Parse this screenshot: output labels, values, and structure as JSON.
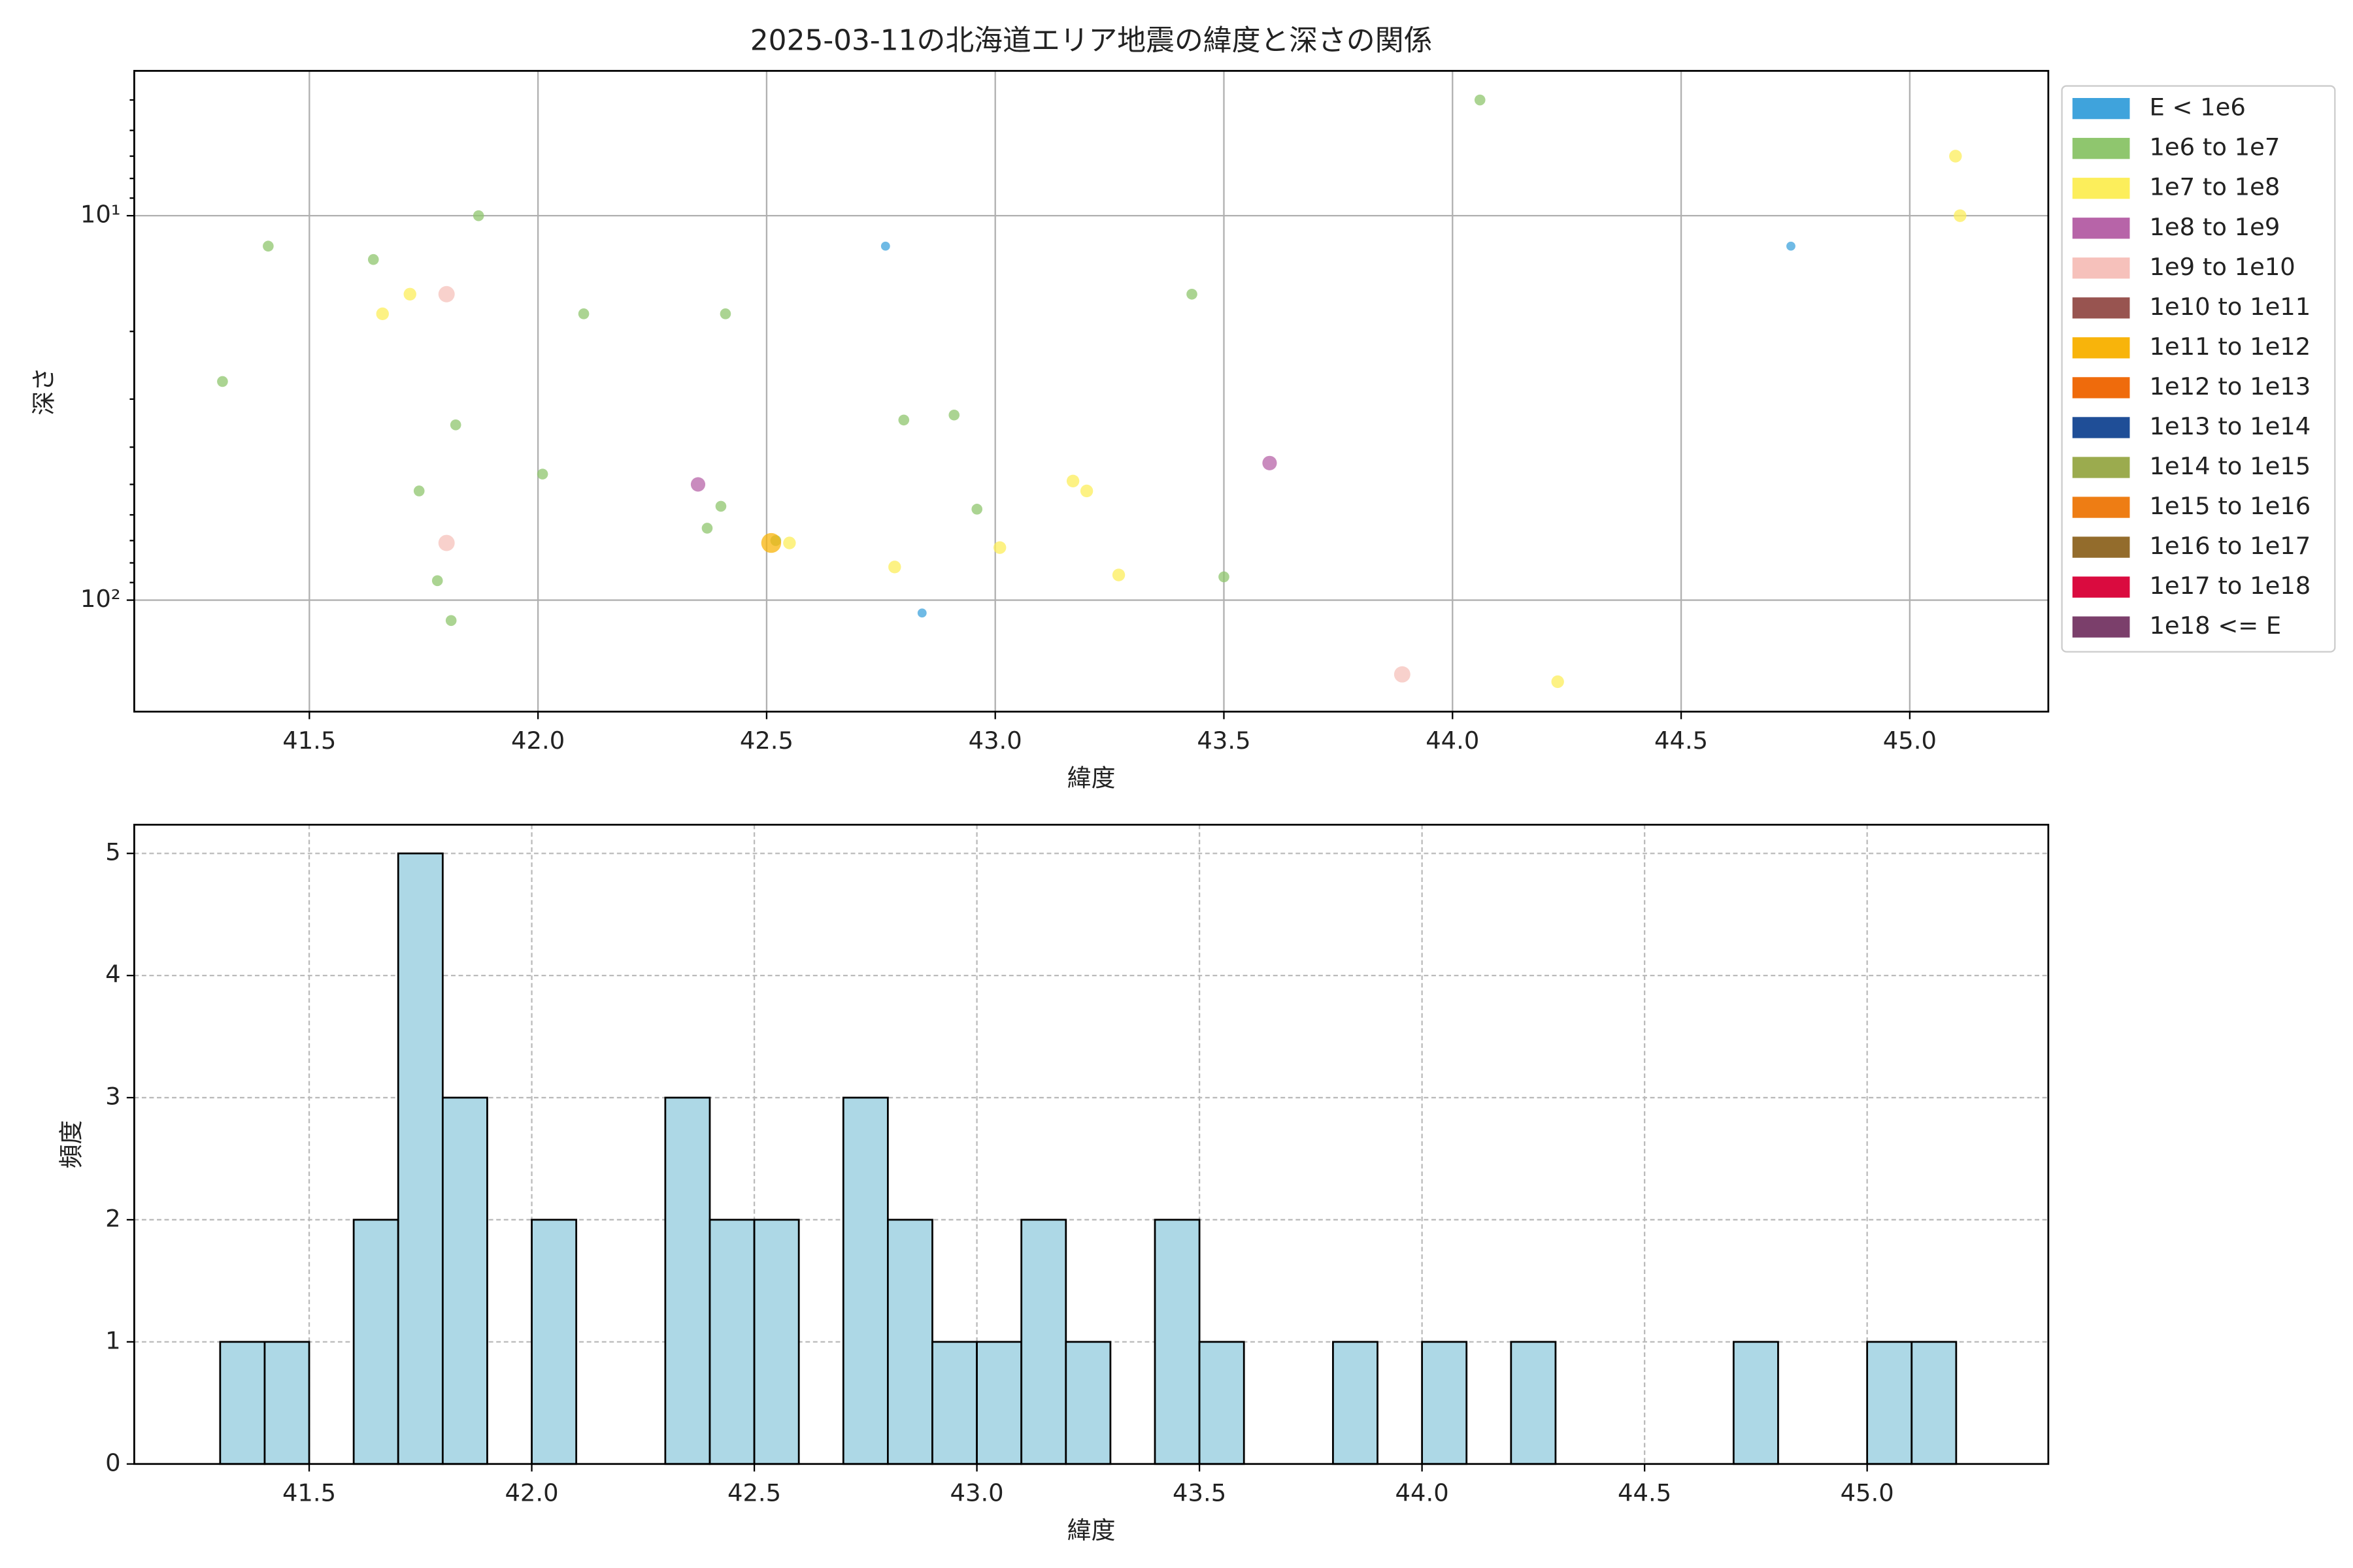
{
  "chart_data": [
    {
      "type": "scatter",
      "title": "2025-03-11の北海道エリア地震の緯度と深さの関係",
      "xlabel": "緯度",
      "ylabel": "深さ",
      "xlim": [
        41.117,
        45.303
      ],
      "xticks": [
        41.5,
        {
          "value": 42,
          "label": "42.0"
        },
        42.5,
        {
          "value": 43,
          "label": "43.0"
        },
        43.5,
        {
          "value": 44,
          "label": "44.0"
        },
        44.5,
        {
          "value": 45,
          "label": "45.0"
        }
      ],
      "ylim": [
        195,
        4.2
      ],
      "ylog": true,
      "yticks": [
        {
          "value": 10,
          "label": "10¹"
        },
        {
          "value": 100,
          "label": "10²"
        }
      ],
      "yminorticks": [
        5,
        6,
        7,
        8,
        9,
        20,
        30,
        40,
        50,
        60,
        70,
        80,
        90
      ],
      "grid": true,
      "legend": "outside right",
      "series": [
        {
          "name": "E < 1e6",
          "color": "#3fa3dc",
          "x": [
            42.76,
            42.84,
            44.74
          ],
          "values": [
            12,
            108,
            12
          ]
        },
        {
          "name": "1e6 to 1e7",
          "color": "#8fc66e",
          "x": [
            41.31,
            41.41,
            41.64,
            41.87,
            41.82,
            41.74,
            41.78,
            41.81,
            42.01,
            42.1,
            42.41,
            42.4,
            42.37,
            42.52,
            42.8,
            42.91,
            42.96,
            43.43,
            43.5,
            44.06
          ],
          "values": [
            27,
            12,
            13,
            10,
            35,
            52,
            89,
            113,
            47,
            18,
            18,
            57,
            65,
            70,
            34,
            33,
            58,
            16,
            87,
            5.0
          ]
        },
        {
          "name": "1e7 to 1e8",
          "color": "#fcee5b",
          "x": [
            41.66,
            41.72,
            42.55,
            42.78,
            43.01,
            43.17,
            43.2,
            43.27,
            44.23,
            45.1,
            45.11
          ],
          "values": [
            18,
            16,
            71,
            82,
            73,
            49,
            52,
            86,
            163,
            7.0,
            10
          ]
        },
        {
          "name": "1e8 to 1e9",
          "color": "#b764a8",
          "x": [
            42.35,
            43.6
          ],
          "values": [
            50,
            44
          ]
        },
        {
          "name": "1e9 to 1e10",
          "color": "#f6c1bb",
          "x": [
            41.8,
            41.8,
            43.89
          ],
          "values": [
            16,
            71,
            156
          ]
        },
        {
          "name": "1e10 to 1e11",
          "color": "#985450",
          "x": [],
          "values": []
        },
        {
          "name": "1e11 to 1e12",
          "color": "#f8b40b",
          "x": [
            42.51
          ],
          "values": [
            71
          ]
        },
        {
          "name": "1e12 to 1e13",
          "color": "#ef6b0c",
          "x": [],
          "values": []
        },
        {
          "name": "1e13 to 1e14",
          "color": "#1f4e97",
          "x": [],
          "values": []
        },
        {
          "name": "1e14 to 1e15",
          "color": "#9bab4e",
          "x": [],
          "values": []
        },
        {
          "name": "1e15 to 1e16",
          "color": "#ee7d14",
          "x": [],
          "values": []
        },
        {
          "name": "1e16 to 1e17",
          "color": "#936c2c",
          "x": [],
          "values": []
        },
        {
          "name": "1e17 to 1e18",
          "color": "#da0b3f",
          "x": [],
          "values": []
        },
        {
          "name": "1e18 <= E",
          "color": "#7b3f6b",
          "x": [],
          "values": []
        }
      ]
    },
    {
      "type": "histogram",
      "xlabel": "緯度",
      "ylabel": "頻度",
      "color": "#add8e6",
      "grid": true,
      "xlim": [
        41.107,
        45.407
      ],
      "xticks": [
        41.5,
        {
          "value": 42,
          "label": "42.0"
        },
        42.5,
        {
          "value": 43,
          "label": "43.0"
        },
        43.5,
        {
          "value": 44,
          "label": "44.0"
        },
        44.5,
        {
          "value": 45,
          "label": "45.0"
        }
      ],
      "ylim": [
        0,
        5.235
      ],
      "yticks": [
        0,
        1,
        2,
        3,
        4,
        5
      ],
      "bins": [
        41.3,
        41.4,
        41.5,
        41.6,
        41.7,
        41.8,
        41.9,
        42.0,
        42.1,
        42.2,
        42.3,
        42.4,
        42.5,
        42.6,
        42.7,
        42.8,
        42.9,
        43.0,
        43.1,
        43.2,
        43.3,
        43.4,
        43.5,
        43.6,
        43.7,
        43.8,
        43.9,
        44.0,
        44.1,
        44.2,
        44.3,
        44.4,
        44.5,
        44.6,
        44.7,
        44.8,
        44.9,
        45.0,
        45.1,
        45.2
      ],
      "counts": [
        1,
        1,
        0,
        2,
        5,
        3,
        0,
        2,
        0,
        0,
        3,
        2,
        2,
        0,
        3,
        2,
        1,
        1,
        2,
        1,
        0,
        2,
        1,
        0,
        0,
        1,
        0,
        1,
        0,
        1,
        0,
        0,
        0,
        0,
        1,
        0,
        0,
        1,
        1
      ]
    }
  ]
}
